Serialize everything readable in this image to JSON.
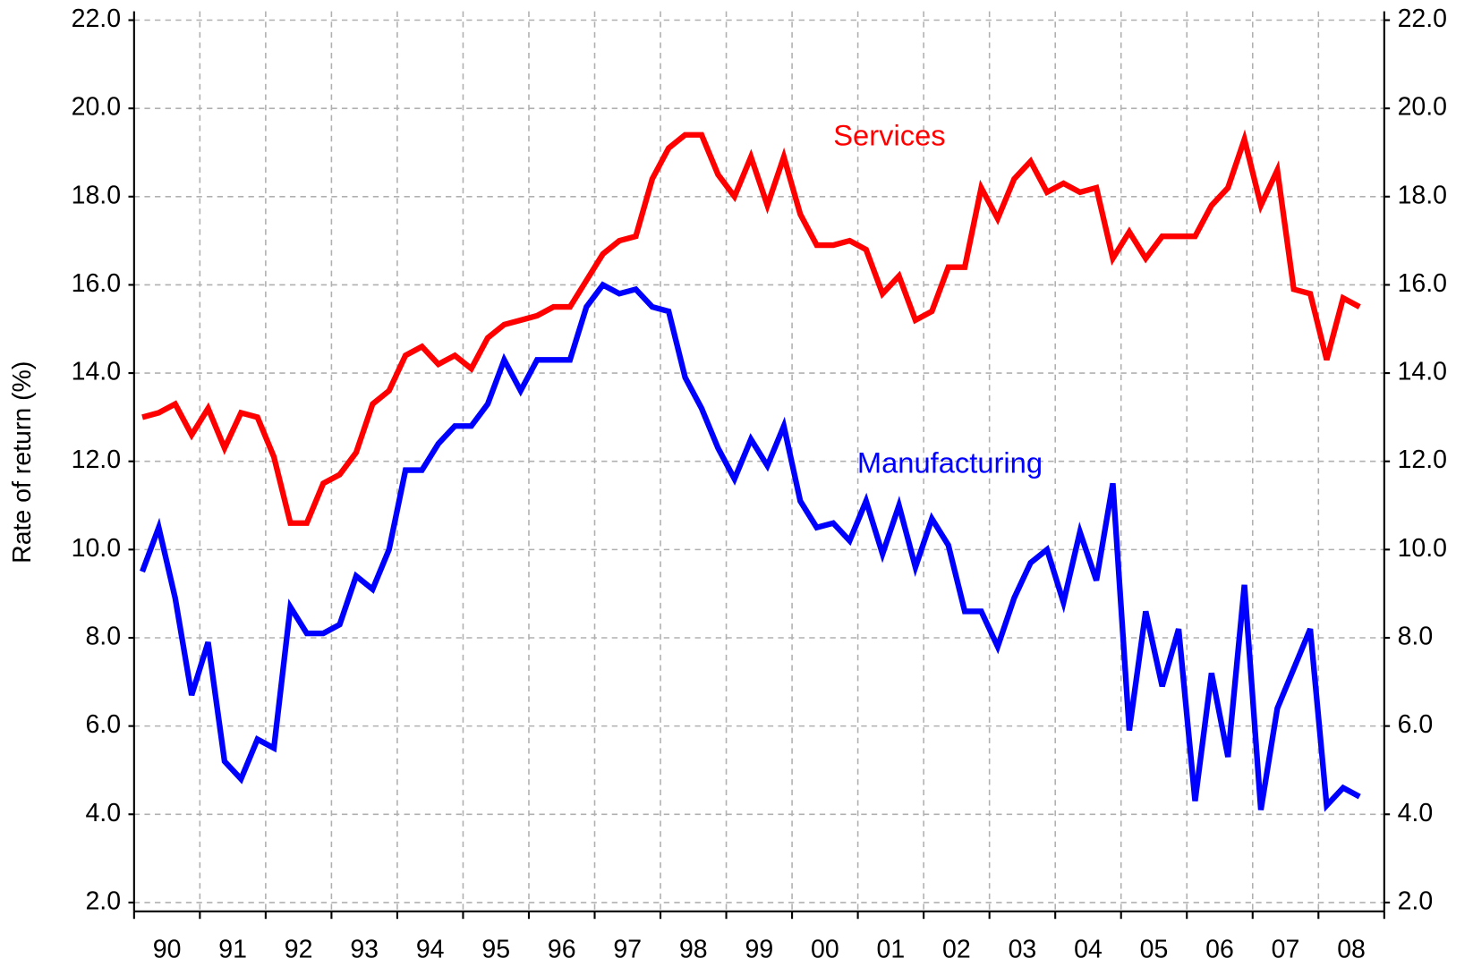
{
  "chart_data": {
    "type": "line",
    "y_label": "Rate of return (%)",
    "categories": [
      "90",
      "91",
      "92",
      "93",
      "94",
      "95",
      "96",
      "97",
      "98",
      "99",
      "00",
      "01",
      "02",
      "03",
      "04",
      "05",
      "06",
      "07",
      "08"
    ],
    "x": [
      1990.125,
      1990.375,
      1990.625,
      1990.875,
      1991.125,
      1991.375,
      1991.625,
      1991.875,
      1992.125,
      1992.375,
      1992.625,
      1992.875,
      1993.125,
      1993.375,
      1993.625,
      1993.875,
      1994.125,
      1994.375,
      1994.625,
      1994.875,
      1995.125,
      1995.375,
      1995.625,
      1995.875,
      1996.125,
      1996.375,
      1996.625,
      1996.875,
      1997.125,
      1997.375,
      1997.625,
      1997.875,
      1998.125,
      1998.375,
      1998.625,
      1998.875,
      1999.125,
      1999.375,
      1999.625,
      1999.875,
      2000.125,
      2000.375,
      2000.625,
      2000.875,
      2001.125,
      2001.375,
      2001.625,
      2001.875,
      2002.125,
      2002.375,
      2002.625,
      2002.875,
      2003.125,
      2003.375,
      2003.625,
      2003.875,
      2004.125,
      2004.375,
      2004.625,
      2004.875,
      2005.125,
      2005.375,
      2005.625,
      2005.875,
      2006.125,
      2006.375,
      2006.625,
      2006.875,
      2007.125,
      2007.375,
      2007.625,
      2007.875,
      2008.125,
      2008.375,
      2008.625
    ],
    "series": [
      {
        "name": "Services",
        "color": "#ff0000",
        "values": [
          13.0,
          13.1,
          13.3,
          12.6,
          13.2,
          12.3,
          13.1,
          13.0,
          12.1,
          10.6,
          10.6,
          11.5,
          11.7,
          12.2,
          13.3,
          13.6,
          14.4,
          14.6,
          14.2,
          14.4,
          14.1,
          14.8,
          15.1,
          15.2,
          15.3,
          15.5,
          15.5,
          16.1,
          16.7,
          17.0,
          17.1,
          18.4,
          19.1,
          19.4,
          19.4,
          18.5,
          18.0,
          18.9,
          17.8,
          18.9,
          17.6,
          16.9,
          16.9,
          17.0,
          16.8,
          15.8,
          16.2,
          15.2,
          15.4,
          16.4,
          16.4,
          18.2,
          17.5,
          18.4,
          18.8,
          18.1,
          18.3,
          18.1,
          18.2,
          16.6,
          17.2,
          16.6,
          17.1,
          17.1,
          17.1,
          17.8,
          18.2,
          19.3,
          17.8,
          18.6,
          15.9,
          15.8,
          14.3,
          15.7,
          15.5
        ]
      },
      {
        "name": "Manufacturing",
        "color": "#0000ff",
        "values": [
          9.5,
          10.5,
          8.9,
          6.7,
          7.9,
          5.2,
          4.8,
          5.7,
          5.5,
          8.7,
          8.1,
          8.1,
          8.3,
          9.4,
          9.1,
          10.0,
          11.8,
          11.8,
          12.4,
          12.8,
          12.8,
          13.3,
          14.3,
          13.6,
          14.3,
          14.3,
          14.3,
          15.5,
          16.0,
          15.8,
          15.9,
          15.5,
          15.4,
          13.9,
          13.2,
          12.3,
          11.6,
          12.5,
          11.9,
          12.8,
          11.1,
          10.5,
          10.6,
          10.2,
          11.1,
          9.9,
          11.0,
          9.6,
          10.7,
          10.1,
          8.6,
          8.6,
          7.8,
          8.9,
          9.7,
          10.0,
          8.8,
          10.4,
          9.3,
          11.5,
          5.9,
          8.6,
          6.9,
          8.2,
          4.3,
          7.2,
          5.3,
          9.2,
          4.1,
          6.4,
          7.3,
          8.2,
          4.2,
          4.6,
          4.4
        ]
      }
    ],
    "xlim": [
      1990,
      2009
    ],
    "xticks": [
      1990,
      1991,
      1992,
      1993,
      1994,
      1995,
      1996,
      1997,
      1998,
      1999,
      2000,
      2001,
      2002,
      2003,
      2004,
      2005,
      2006,
      2007,
      2008,
      2009
    ],
    "ylim": [
      1.8,
      22.2
    ],
    "yticks": [
      {
        "value": 2,
        "label": "2.0"
      },
      {
        "value": 4,
        "label": "4.0"
      },
      {
        "value": 6,
        "label": "6.0"
      },
      {
        "value": 8,
        "label": "8.0"
      },
      {
        "value": 10,
        "label": "10.0"
      },
      {
        "value": 12,
        "label": "12.0"
      },
      {
        "value": 14,
        "label": "14.0"
      },
      {
        "value": 16,
        "label": "16.0"
      },
      {
        "value": 18,
        "label": "18.0"
      },
      {
        "value": 20,
        "label": "20.0"
      },
      {
        "value": 22,
        "label": "22.0"
      }
    ],
    "y2lim": [
      1.8,
      22.2
    ],
    "y2ticks": [
      {
        "value": 2,
        "label": "2.0"
      },
      {
        "value": 4,
        "label": "4.0"
      },
      {
        "value": 6,
        "label": "6.0"
      },
      {
        "value": 8,
        "label": "8.0"
      },
      {
        "value": 10,
        "label": "10.0"
      },
      {
        "value": 12,
        "label": "12.0"
      },
      {
        "value": 14,
        "label": "14.0"
      },
      {
        "value": 16,
        "label": "16.0"
      },
      {
        "value": 18,
        "label": "18.0"
      },
      {
        "value": 20,
        "label": "20.0"
      },
      {
        "value": 22,
        "label": "22.0"
      }
    ],
    "grid": true,
    "legend": "inline"
  }
}
